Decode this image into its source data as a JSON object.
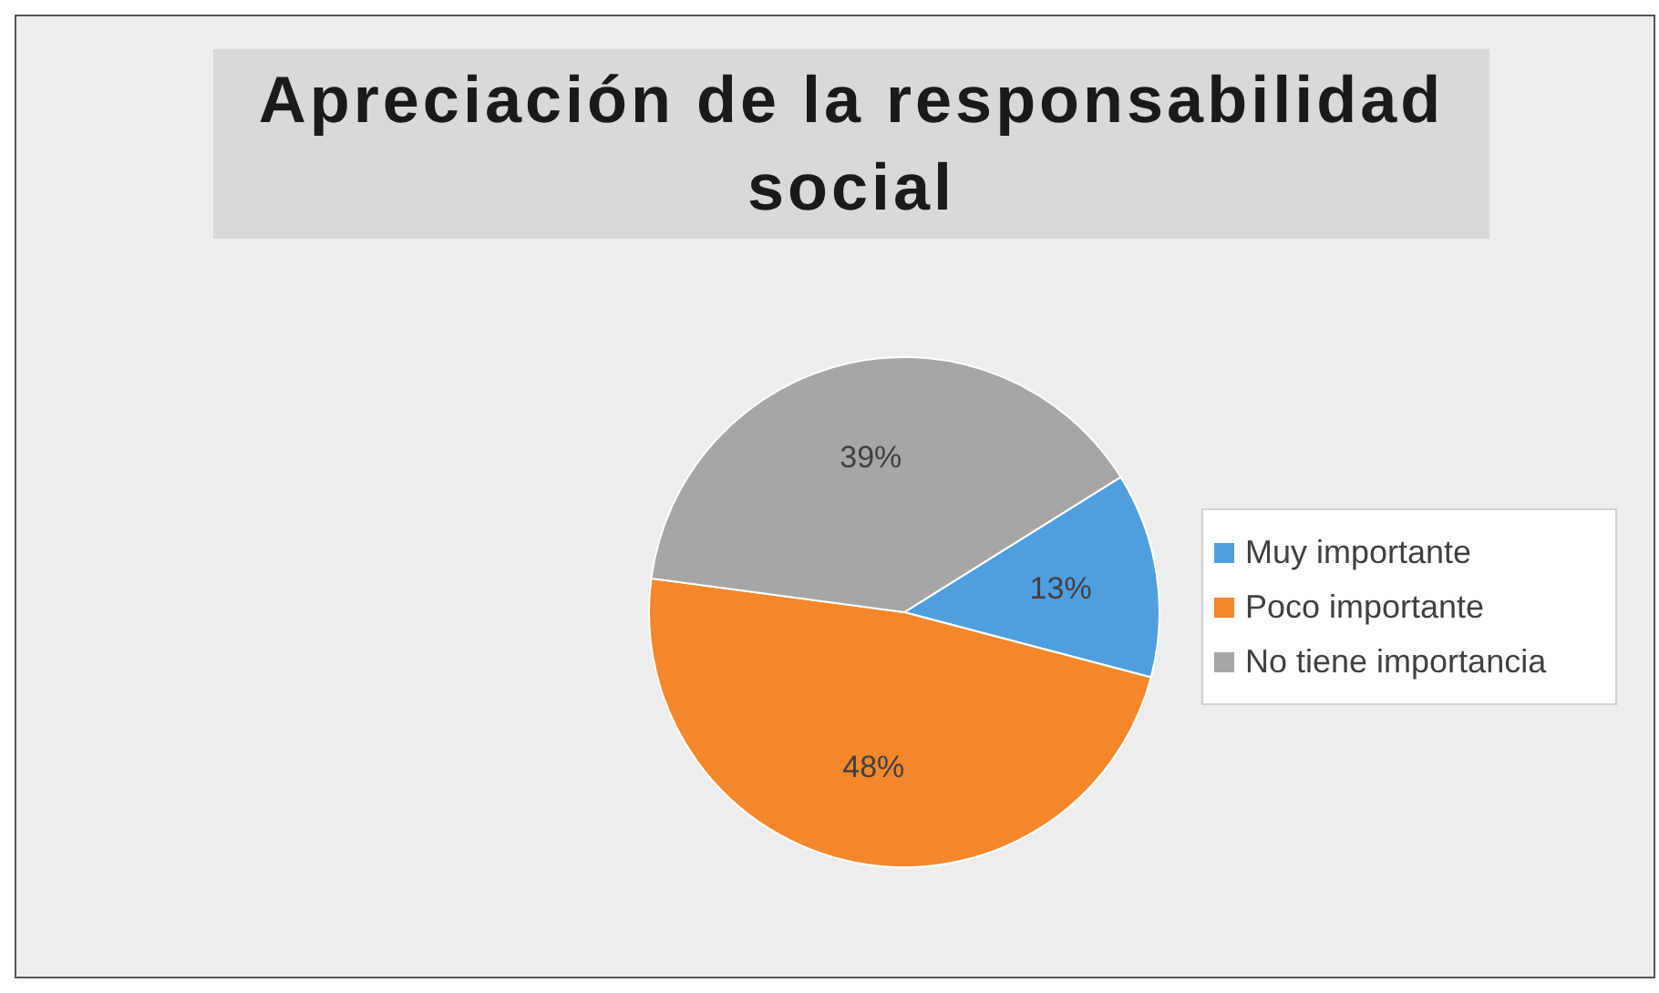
{
  "chart_data": {
    "type": "pie",
    "title": "Apreciación de la responsabilidad social",
    "categories": [
      "Muy importante",
      "Poco importante",
      "No tiene importancia"
    ],
    "values": [
      13,
      48,
      39
    ],
    "colors": [
      "#4f9fe0",
      "#f5872b",
      "#a6a6a6"
    ],
    "value_labels": [
      "13%",
      "48%",
      "39%"
    ],
    "legend": "right"
  }
}
